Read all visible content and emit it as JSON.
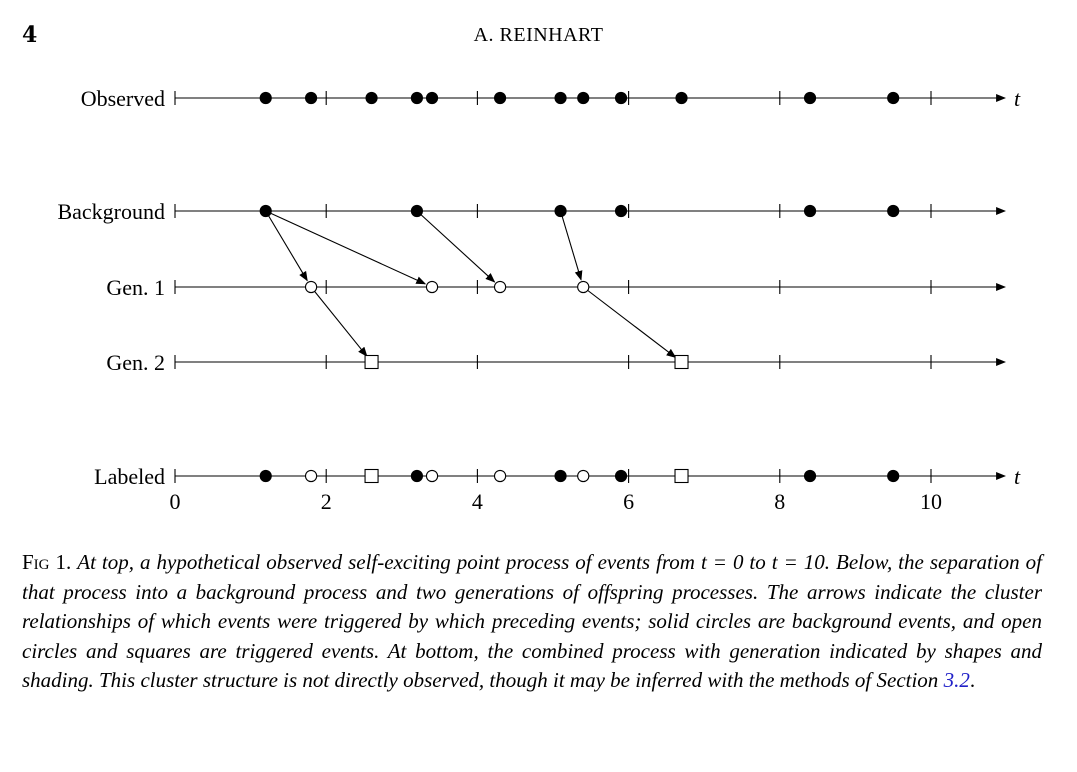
{
  "header": {
    "page_number": "4",
    "running_head": "A. REINHART"
  },
  "figure": {
    "t_axis_min": 0,
    "t_axis_max": 11,
    "major_ticks": [
      0,
      2,
      4,
      6,
      8,
      10
    ],
    "odd_ticks": [
      1,
      3,
      5,
      7,
      9
    ],
    "tick_labels": [
      "0",
      "2",
      "4",
      "6",
      "8",
      "10"
    ],
    "time_label": "t",
    "rows": [
      {
        "key": "observed",
        "label": "Observed",
        "show_t": true,
        "events": [
          {
            "t": 1.2,
            "kind": "solid"
          },
          {
            "t": 1.8,
            "kind": "solid"
          },
          {
            "t": 2.6,
            "kind": "solid"
          },
          {
            "t": 3.2,
            "kind": "solid"
          },
          {
            "t": 3.4,
            "kind": "solid"
          },
          {
            "t": 4.3,
            "kind": "solid"
          },
          {
            "t": 5.1,
            "kind": "solid"
          },
          {
            "t": 5.4,
            "kind": "solid"
          },
          {
            "t": 5.9,
            "kind": "solid"
          },
          {
            "t": 6.7,
            "kind": "solid"
          },
          {
            "t": 8.4,
            "kind": "solid"
          },
          {
            "t": 9.5,
            "kind": "solid"
          }
        ]
      },
      {
        "key": "background",
        "label": "Background",
        "show_t": false,
        "events": [
          {
            "t": 1.2,
            "kind": "solid"
          },
          {
            "t": 3.2,
            "kind": "solid"
          },
          {
            "t": 5.1,
            "kind": "solid"
          },
          {
            "t": 5.9,
            "kind": "solid"
          },
          {
            "t": 8.4,
            "kind": "solid"
          },
          {
            "t": 9.5,
            "kind": "solid"
          }
        ]
      },
      {
        "key": "gen1",
        "label": "Gen. 1",
        "show_t": false,
        "events": [
          {
            "t": 1.8,
            "kind": "open"
          },
          {
            "t": 3.4,
            "kind": "open"
          },
          {
            "t": 4.3,
            "kind": "open"
          },
          {
            "t": 5.4,
            "kind": "open"
          }
        ]
      },
      {
        "key": "gen2",
        "label": "Gen. 2",
        "show_t": false,
        "events": [
          {
            "t": 2.6,
            "kind": "square"
          },
          {
            "t": 6.7,
            "kind": "square"
          }
        ]
      },
      {
        "key": "labeled",
        "label": "Labeled",
        "show_t": true,
        "events": [
          {
            "t": 1.2,
            "kind": "solid"
          },
          {
            "t": 1.8,
            "kind": "open"
          },
          {
            "t": 2.6,
            "kind": "square"
          },
          {
            "t": 3.2,
            "kind": "solid"
          },
          {
            "t": 3.4,
            "kind": "open"
          },
          {
            "t": 4.3,
            "kind": "open"
          },
          {
            "t": 5.1,
            "kind": "solid"
          },
          {
            "t": 5.4,
            "kind": "open"
          },
          {
            "t": 5.9,
            "kind": "solid"
          },
          {
            "t": 6.7,
            "kind": "square"
          },
          {
            "t": 8.4,
            "kind": "solid"
          },
          {
            "t": 9.5,
            "kind": "solid"
          }
        ]
      }
    ],
    "arrows": [
      {
        "from_row": "background",
        "from_t": 1.2,
        "to_row": "gen1",
        "to_t": 1.8
      },
      {
        "from_row": "background",
        "from_t": 1.2,
        "to_row": "gen1",
        "to_t": 3.4
      },
      {
        "from_row": "background",
        "from_t": 3.2,
        "to_row": "gen1",
        "to_t": 4.3
      },
      {
        "from_row": "background",
        "from_t": 5.1,
        "to_row": "gen1",
        "to_t": 5.4
      },
      {
        "from_row": "gen1",
        "from_t": 1.8,
        "to_row": "gen2",
        "to_t": 2.6
      },
      {
        "from_row": "gen1",
        "from_t": 5.4,
        "to_row": "gen2",
        "to_t": 6.7
      }
    ]
  },
  "caption": {
    "label": "Fig 1.",
    "text": "At top, a hypothetical observed self-exciting point process of events from t = 0 to t = 10. Below, the separation of that process into a background process and two generations of offspring processes. The arrows indicate the cluster relationships of which events were triggered by which preceding events; solid circles are background events, and open circles and squares are triggered events. At bottom, the combined process with generation indicated by shapes and shading. This cluster structure is not directly observed, though it may be inferred with the methods of Section",
    "section_ref": "3.2",
    "end_punct": "."
  }
}
